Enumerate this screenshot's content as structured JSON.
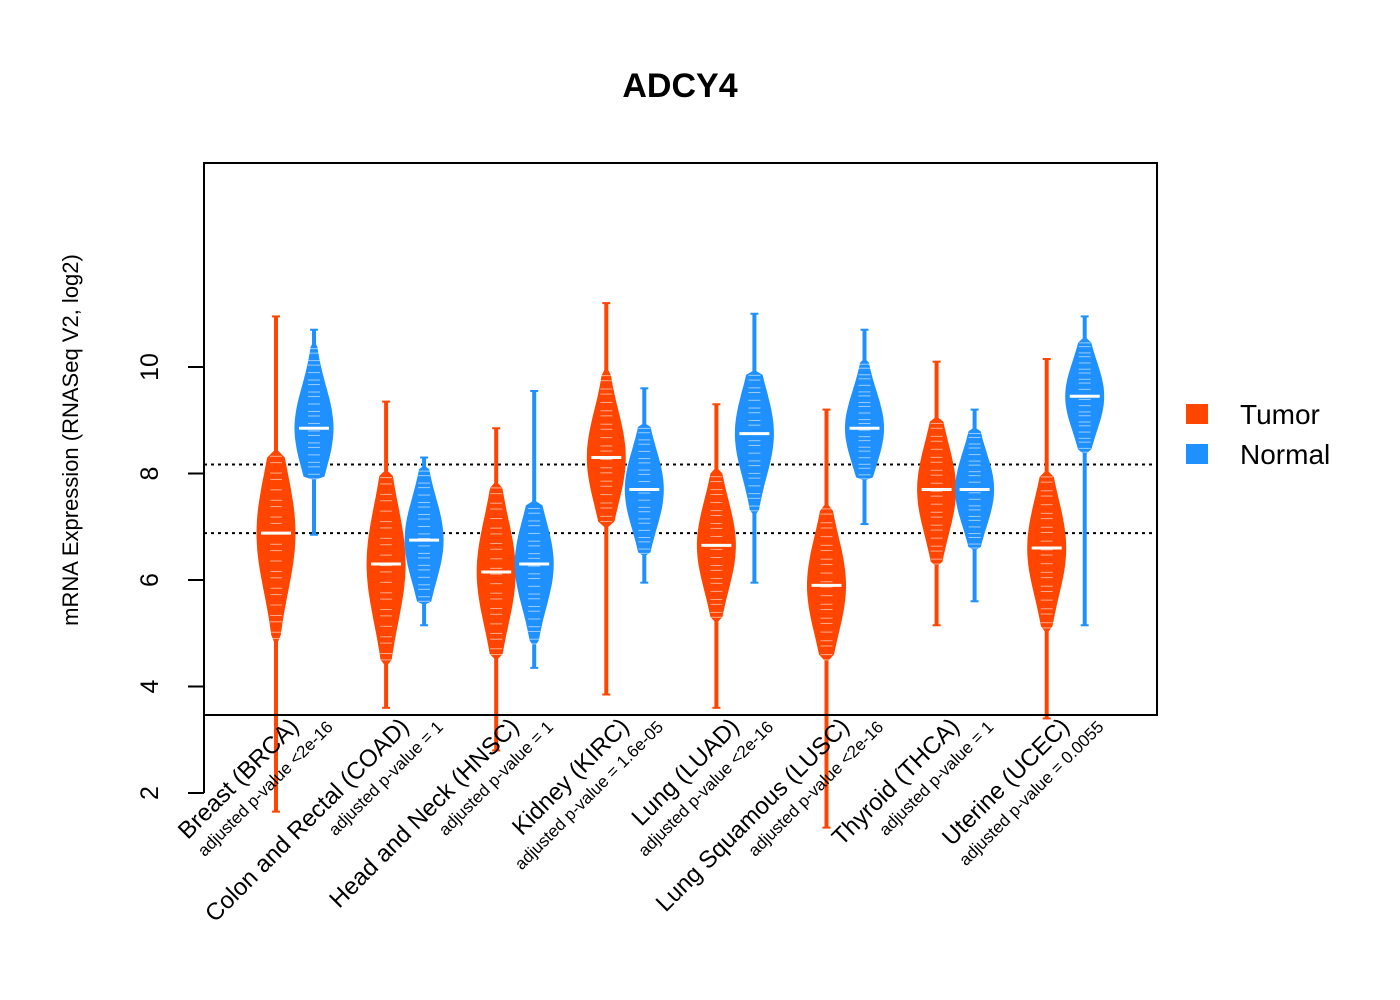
{
  "chart_data": {
    "type": "violin",
    "title": "ADCY4",
    "xlabel": "",
    "ylabel": "mRNA Expression (RNASeq V2, log2)",
    "ylim": [
      1.0,
      11.3
    ],
    "yticks": [
      "2",
      "4",
      "6",
      "8",
      "10"
    ],
    "reference_lines": [
      8.17,
      6.88
    ],
    "legend_position": "right",
    "series": [
      {
        "name": "Tumor",
        "color": "#ff4500"
      },
      {
        "name": "Normal",
        "color": "#1e90ff"
      }
    ],
    "categories": [
      {
        "label": "Breast (BRCA)",
        "pvalue": "adjusted p-value <2e-16",
        "tumor": {
          "min": 1.65,
          "max": 10.95,
          "median": 6.88,
          "body_low": 4.9,
          "body_high": 8.4
        },
        "normal": {
          "min": 6.85,
          "max": 10.7,
          "median": 8.85,
          "body_low": 7.9,
          "body_high": 10.4
        }
      },
      {
        "label": "Colon and Rectal (COAD)",
        "pvalue": "adjusted p-value = 1",
        "tumor": {
          "min": 3.6,
          "max": 9.35,
          "median": 6.3,
          "body_low": 4.5,
          "body_high": 8.0
        },
        "normal": {
          "min": 5.15,
          "max": 8.3,
          "median": 6.75,
          "body_low": 5.6,
          "body_high": 8.1
        }
      },
      {
        "label": "Head and Neck (HNSC)",
        "pvalue": "adjusted p-value = 1",
        "tumor": {
          "min": 2.8,
          "max": 8.85,
          "median": 6.15,
          "body_low": 4.6,
          "body_high": 7.8
        },
        "normal": {
          "min": 4.35,
          "max": 9.55,
          "median": 6.3,
          "body_low": 4.8,
          "body_high": 7.4
        }
      },
      {
        "label": "Kidney (KIRC)",
        "pvalue": "adjusted p-value = 1.6e-05",
        "tumor": {
          "min": 3.85,
          "max": 11.2,
          "median": 8.3,
          "body_low": 7.1,
          "body_high": 9.9
        },
        "normal": {
          "min": 5.95,
          "max": 9.6,
          "median": 7.7,
          "body_low": 6.5,
          "body_high": 8.9
        }
      },
      {
        "label": "Lung (LUAD)",
        "pvalue": "adjusted p-value <2e-16",
        "tumor": {
          "min": 3.6,
          "max": 9.3,
          "median": 6.65,
          "body_low": 5.3,
          "body_high": 8.0
        },
        "normal": {
          "min": 5.95,
          "max": 11.0,
          "median": 8.75,
          "body_low": 7.3,
          "body_high": 9.9
        }
      },
      {
        "label": "Lung Squamous (LUSC)",
        "pvalue": "adjusted p-value <2e-16",
        "tumor": {
          "min": 1.35,
          "max": 9.2,
          "median": 5.9,
          "body_low": 4.5,
          "body_high": 7.4
        },
        "normal": {
          "min": 7.05,
          "max": 10.7,
          "median": 8.85,
          "body_low": 7.9,
          "body_high": 10.1
        }
      },
      {
        "label": "Thyroid (THCA)",
        "pvalue": "adjusted p-value = 1",
        "tumor": {
          "min": 5.15,
          "max": 10.1,
          "median": 7.7,
          "body_low": 6.3,
          "body_high": 9.0
        },
        "normal": {
          "min": 5.6,
          "max": 9.2,
          "median": 7.7,
          "body_low": 6.6,
          "body_high": 8.8
        }
      },
      {
        "label": "Uterine (UCEC)",
        "pvalue": "adjusted p-value = 0.0055",
        "tumor": {
          "min": 3.4,
          "max": 10.15,
          "median": 6.6,
          "body_low": 5.1,
          "body_high": 8.0
        },
        "normal": {
          "min": 5.15,
          "max": 10.95,
          "median": 9.45,
          "body_low": 8.4,
          "body_high": 10.5
        }
      }
    ]
  }
}
